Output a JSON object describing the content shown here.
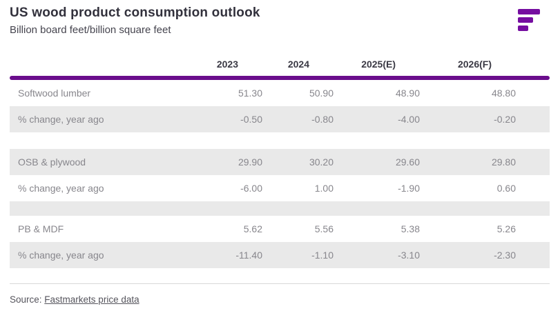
{
  "chart_data": {
    "type": "table",
    "title": "US wood product consumption outlook",
    "subtitle": "Billion board feet/billion square feet",
    "columns": [
      "2023",
      "2024",
      "2025(E)",
      "2026(F)"
    ],
    "rows": [
      {
        "label": "Softwood lumber",
        "values": [
          "51.30",
          "50.90",
          "48.90",
          "48.80"
        ]
      },
      {
        "label": "% change, year ago",
        "values": [
          "-0.50",
          "-0.80",
          "-4.00",
          "-0.20"
        ]
      },
      {
        "label": "OSB & plywood",
        "values": [
          "29.90",
          "30.20",
          "29.60",
          "29.80"
        ]
      },
      {
        "label": "% change, year ago",
        "values": [
          "-6.00",
          "1.00",
          "-1.90",
          "0.60"
        ]
      },
      {
        "label": "PB & MDF",
        "values": [
          "5.62",
          "5.56",
          "5.38",
          "5.26"
        ]
      },
      {
        "label": "% change, year ago",
        "values": [
          "-11.40",
          "-1.10",
          "-3.10",
          "-2.30"
        ]
      }
    ],
    "source_prefix": "Source:",
    "source_link": "Fastmarkets price data",
    "layout": {
      "stripe_pattern": [
        "white",
        "gray",
        "spacer-white",
        "gray",
        "white",
        "spacer-gray",
        "white",
        "gray"
      ]
    }
  },
  "branding": {
    "logo": "fastmarkets-logo-mark"
  },
  "colors": {
    "accent_purple_rule": "#6a0d8c",
    "accent_purple_logo": "#750da0",
    "row_stripe_gray": "#e9e9e9",
    "heading_text": "#32313c",
    "body_text": "#87868c",
    "footer_rule": "#d8d8d8"
  }
}
